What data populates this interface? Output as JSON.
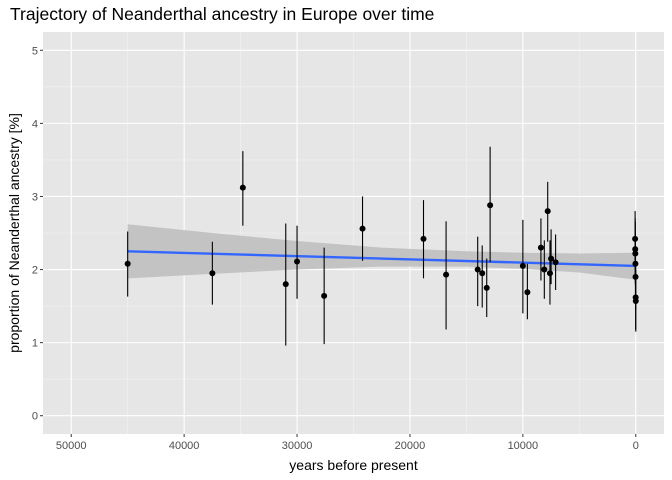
{
  "chart_data": {
    "type": "scatter",
    "title": "Trajectory of Neanderthal ancestry in Europe over time",
    "xlabel": "years before present",
    "ylabel": "proportion of Neanderthal ancestry [%]",
    "xlim": [
      52500,
      -2500
    ],
    "ylim": [
      -0.25,
      5.25
    ],
    "x_reversed": true,
    "x_ticks": [
      50000,
      40000,
      30000,
      20000,
      10000,
      0
    ],
    "x_tick_labels": [
      "50000",
      "40000",
      "30000",
      "20000",
      "10000",
      "0"
    ],
    "y_ticks": [
      0,
      1,
      2,
      3,
      4,
      5
    ],
    "y_tick_labels": [
      "0",
      "1",
      "2",
      "3",
      "4",
      "5"
    ],
    "grid": true,
    "legend": "none",
    "colors": {
      "panel": "#e6e6e6",
      "grid_major": "#ffffff",
      "points": "#000000",
      "trend_line": "#3366ff",
      "confidence_band": "#bfbfbf"
    },
    "points": [
      {
        "x": 45000,
        "y": 2.08,
        "low": 1.63,
        "high": 2.52
      },
      {
        "x": 37500,
        "y": 1.95,
        "low": 1.52,
        "high": 2.38
      },
      {
        "x": 34800,
        "y": 3.12,
        "low": 2.6,
        "high": 3.62
      },
      {
        "x": 31000,
        "y": 1.8,
        "low": 0.96,
        "high": 2.63
      },
      {
        "x": 30000,
        "y": 2.11,
        "low": 1.6,
        "high": 2.6
      },
      {
        "x": 27600,
        "y": 1.64,
        "low": 0.98,
        "high": 2.3
      },
      {
        "x": 24200,
        "y": 2.56,
        "low": 2.12,
        "high": 3.0
      },
      {
        "x": 18800,
        "y": 2.42,
        "low": 1.88,
        "high": 2.95
      },
      {
        "x": 16800,
        "y": 1.93,
        "low": 1.18,
        "high": 2.66
      },
      {
        "x": 14000,
        "y": 2.0,
        "low": 1.5,
        "high": 2.45
      },
      {
        "x": 13600,
        "y": 1.95,
        "low": 1.48,
        "high": 2.33
      },
      {
        "x": 13200,
        "y": 1.75,
        "low": 1.35,
        "high": 2.15
      },
      {
        "x": 12900,
        "y": 2.88,
        "low": 2.1,
        "high": 3.68
      },
      {
        "x": 10000,
        "y": 2.05,
        "low": 1.4,
        "high": 2.68
      },
      {
        "x": 9600,
        "y": 1.69,
        "low": 1.32,
        "high": 2.08
      },
      {
        "x": 8400,
        "y": 2.3,
        "low": 1.85,
        "high": 2.7
      },
      {
        "x": 8100,
        "y": 2.0,
        "low": 1.6,
        "high": 2.4
      },
      {
        "x": 7800,
        "y": 2.8,
        "low": 2.38,
        "high": 3.2
      },
      {
        "x": 7600,
        "y": 1.95,
        "low": 1.52,
        "high": 2.4
      },
      {
        "x": 7500,
        "y": 2.15,
        "low": 1.8,
        "high": 2.55
      },
      {
        "x": 7100,
        "y": 2.1,
        "low": 1.72,
        "high": 2.48
      },
      {
        "x": 60,
        "y": 2.42,
        "low": 2.08,
        "high": 2.8
      },
      {
        "x": 50,
        "y": 2.28,
        "low": 1.85,
        "high": 2.7
      },
      {
        "x": 40,
        "y": 2.22,
        "low": 1.8,
        "high": 2.65
      },
      {
        "x": 30,
        "y": 2.08,
        "low": 1.65,
        "high": 2.5
      },
      {
        "x": 20,
        "y": 1.9,
        "low": 1.45,
        "high": 2.32
      },
      {
        "x": 10,
        "y": 1.62,
        "low": 1.18,
        "high": 2.05
      },
      {
        "x": 0,
        "y": 1.57,
        "low": 1.15,
        "high": 2.0
      }
    ],
    "trend": {
      "method": "linear",
      "x": [
        45000,
        0
      ],
      "y": [
        2.25,
        2.05
      ],
      "band": [
        {
          "x": 45000,
          "low": 1.88,
          "high": 2.62
        },
        {
          "x": 37500,
          "low": 1.94,
          "high": 2.5
        },
        {
          "x": 30000,
          "low": 2.0,
          "high": 2.39
        },
        {
          "x": 22500,
          "low": 2.04,
          "high": 2.3
        },
        {
          "x": 15000,
          "low": 2.04,
          "high": 2.25
        },
        {
          "x": 10000,
          "low": 2.01,
          "high": 2.23
        },
        {
          "x": 5000,
          "low": 1.96,
          "high": 2.22
        },
        {
          "x": 0,
          "low": 1.86,
          "high": 2.23
        }
      ]
    }
  }
}
